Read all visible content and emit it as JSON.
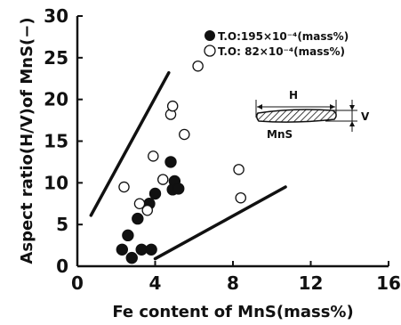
{
  "chart_data": {
    "type": "scatter",
    "xlabel": "Fe content of MnS(mass%)",
    "ylabel": "Aspect ratio(H/V)of MnS(−)",
    "xlim": [
      0,
      16
    ],
    "ylim": [
      0,
      30
    ],
    "x_ticks": [
      "0",
      "4",
      "8",
      "12",
      "16"
    ],
    "y_ticks": [
      "0",
      "5",
      "10",
      "15",
      "20",
      "25",
      "30"
    ],
    "grid": false,
    "legend": {
      "placement": "top-right",
      "entries": [
        {
          "label": "T.O:195×10⁻⁴(mass%)",
          "marker": "filled-circle"
        },
        {
          "label": "T.O: 82×10⁻⁴(mass%)",
          "marker": "open-circle"
        }
      ]
    },
    "series": [
      {
        "marker": "filled-circle",
        "x": [
          2.3,
          2.6,
          2.8,
          3.1,
          3.3,
          3.7,
          3.8,
          4.0,
          4.8,
          4.9,
          5.0,
          5.2
        ],
        "y": [
          2.0,
          3.7,
          1.0,
          5.7,
          2.0,
          7.5,
          2.0,
          8.7,
          12.5,
          9.2,
          10.2,
          9.3
        ]
      },
      {
        "marker": "open-circle",
        "x": [
          2.4,
          3.2,
          3.6,
          3.9,
          4.4,
          4.8,
          4.9,
          5.5,
          6.2,
          8.3,
          8.4
        ],
        "y": [
          9.5,
          7.5,
          6.7,
          13.2,
          10.4,
          18.2,
          19.2,
          15.8,
          24.0,
          11.6,
          8.2
        ]
      }
    ],
    "boundary_lines": [
      {
        "x": [
          0.7,
          4.7
        ],
        "y": [
          6.1,
          23.2
        ]
      },
      {
        "x": [
          4.0,
          10.7
        ],
        "y": [
          0.9,
          9.5
        ]
      }
    ],
    "inset": {
      "label": "MnS",
      "width_label": "H",
      "height_label": "V"
    }
  }
}
